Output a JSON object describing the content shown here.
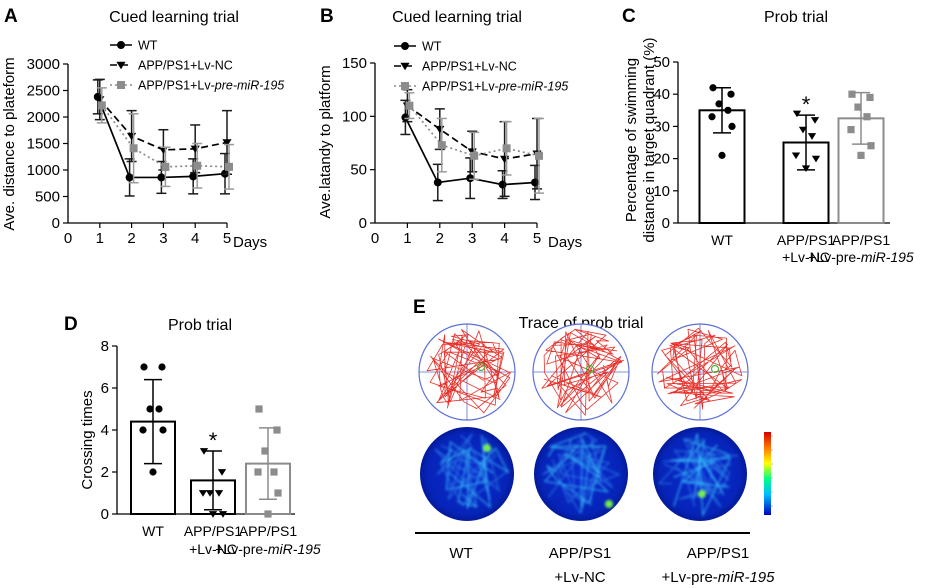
{
  "panel_letters": [
    "A",
    "B",
    "C",
    "D",
    "E"
  ],
  "chart_data": [
    {
      "id": "A",
      "type": "line",
      "title": "Cued learning trial",
      "ylabel": "Ave. distance to plateform",
      "xlabel": "Days",
      "x": [
        1,
        2,
        3,
        4,
        5
      ],
      "xlim": [
        0,
        5
      ],
      "ylim": [
        0,
        3000
      ],
      "xticks": [
        "0",
        "1",
        "2",
        "3",
        "4",
        "5"
      ],
      "yticks": [
        "0",
        "500",
        "1000",
        "1500",
        "2000",
        "2500",
        "3000"
      ],
      "series": [
        {
          "name": "WT",
          "legend_prefix": "WT",
          "legend_italic": "",
          "style": "solid",
          "marker": "circle",
          "color": "#000000",
          "values": [
            2380,
            860,
            860,
            880,
            930
          ],
          "errors": [
            320,
            350,
            300,
            330,
            380
          ]
        },
        {
          "name": "APP/PS1+Lv-NC",
          "legend_prefix": "APP/PS1+Lv-NC",
          "legend_italic": "",
          "style": "dashed",
          "marker": "triangle-down",
          "color": "#000000",
          "values": [
            2330,
            1640,
            1380,
            1400,
            1520
          ],
          "errors": [
            380,
            480,
            380,
            450,
            600
          ]
        },
        {
          "name": "APP/PS1+Lv-pre-miR-195",
          "legend_prefix": "APP/PS1+Lv-",
          "legend_italic": "pre-miR-195",
          "style": "dotted",
          "marker": "square",
          "color": "#8c8c8c",
          "values": [
            2220,
            1410,
            1060,
            1080,
            1060
          ],
          "errors": [
            330,
            650,
            370,
            420,
            420
          ]
        }
      ]
    },
    {
      "id": "B",
      "type": "line",
      "title": "Cued learning trial",
      "ylabel": "Ave.latandy to platform",
      "xlabel": "Days",
      "x": [
        1,
        2,
        3,
        4,
        5
      ],
      "xlim": [
        0,
        5
      ],
      "ylim": [
        0,
        150
      ],
      "xticks": [
        "0",
        "1",
        "2",
        "3",
        "4",
        "5"
      ],
      "yticks": [
        "0",
        "50",
        "100",
        "150"
      ],
      "series": [
        {
          "name": "WT",
          "legend_prefix": "WT",
          "legend_italic": "",
          "style": "solid",
          "marker": "circle",
          "color": "#000000",
          "values": [
            99,
            38,
            42,
            36,
            38
          ],
          "errors": [
            16,
            17,
            19,
            13,
            16
          ]
        },
        {
          "name": "APP/PS1+Lv-NC",
          "legend_prefix": "APP/PS1+Lv-NC",
          "legend_italic": "",
          "style": "dashed",
          "marker": "triangle-down",
          "color": "#000000",
          "values": [
            110,
            88,
            67,
            60,
            65
          ],
          "errors": [
            15,
            19,
            19,
            35,
            33
          ]
        },
        {
          "name": "APP/PS1+Lv-pre-miR-195",
          "legend_prefix": "APP/PS1+Lv-",
          "legend_italic": "pre-miR-195",
          "style": "dotted",
          "marker": "square",
          "color": "#8c8c8c",
          "values": [
            110,
            73,
            63,
            70,
            63
          ],
          "errors": [
            12,
            25,
            22,
            25,
            35
          ]
        }
      ]
    },
    {
      "id": "C",
      "type": "bar",
      "title": "Prob trial",
      "ylabel_line1": "Percentage of swimming",
      "ylabel_line2": "distance in target quadrant (%)",
      "ylim": [
        0,
        50
      ],
      "yticks": [
        "0",
        "10",
        "20",
        "30",
        "40",
        "50"
      ],
      "categories": [
        {
          "line1": "WT",
          "line2_prefix": "",
          "line2_italic": "",
          "color": "#000000",
          "marker": "circle"
        },
        {
          "line1": "APP/PS1",
          "line2_prefix": "+Lv-NC",
          "line2_italic": "",
          "color": "#000000",
          "marker": "triangle-down"
        },
        {
          "line1": "APP/PS1",
          "line2_prefix": "+Lv-pre-",
          "line2_italic": "miR-195",
          "color": "#8c8c8c",
          "marker": "square"
        }
      ],
      "values": [
        35,
        25,
        32.5
      ],
      "errors": [
        7,
        8.5,
        8
      ],
      "points": [
        [
          42,
          40,
          37,
          35,
          33,
          30,
          21
        ],
        [
          34,
          32,
          29,
          27,
          21,
          20,
          17
        ],
        [
          40,
          39,
          36,
          33,
          29,
          24,
          21
        ]
      ],
      "significance": [
        "",
        "*",
        ""
      ]
    },
    {
      "id": "D",
      "type": "bar",
      "title": "Prob trial",
      "ylabel": "Crossing times",
      "ylim": [
        0,
        8
      ],
      "yticks": [
        "0",
        "2",
        "4",
        "6",
        "8"
      ],
      "categories": [
        {
          "line1": "WT",
          "line2_prefix": "",
          "line2_italic": "",
          "color": "#000000",
          "marker": "circle"
        },
        {
          "line1": "APP/PS1",
          "line2_prefix": "+Lv-NC",
          "line2_italic": "",
          "color": "#000000",
          "marker": "triangle-down"
        },
        {
          "line1": "APP/PS1",
          "line2_prefix": "+Lv-pre-",
          "line2_italic": "miR-195",
          "color": "#8c8c8c",
          "marker": "square"
        }
      ],
      "values": [
        4.4,
        1.6,
        2.4
      ],
      "errors": [
        2.0,
        1.4,
        1.7
      ],
      "points": [
        [
          7,
          7,
          5,
          5,
          4,
          4,
          2
        ],
        [
          3,
          2,
          1,
          1,
          1,
          0,
          0
        ],
        [
          5,
          4,
          3,
          2,
          2,
          1,
          0
        ]
      ],
      "significance": [
        "",
        "*",
        ""
      ]
    }
  ],
  "panel_E": {
    "title": "Trace of prob trial",
    "groups": [
      {
        "line1": "WT",
        "line2_prefix": "",
        "line2_italic": ""
      },
      {
        "line1": "APP/PS1",
        "line2_prefix": "+Lv-NC",
        "line2_italic": ""
      },
      {
        "line1": "APP/PS1",
        "line2_prefix": "+Lv-pre-",
        "line2_italic": "miR-195"
      }
    ],
    "trace_color": "#e8312a",
    "pool_color": "#5b6fd6",
    "target_color": "#3fbf3f",
    "heatmap_scale": [
      "#d40000",
      "#ff7f00",
      "#ffff00",
      "#00ff7f",
      "#00bfff",
      "#0000c0"
    ]
  }
}
